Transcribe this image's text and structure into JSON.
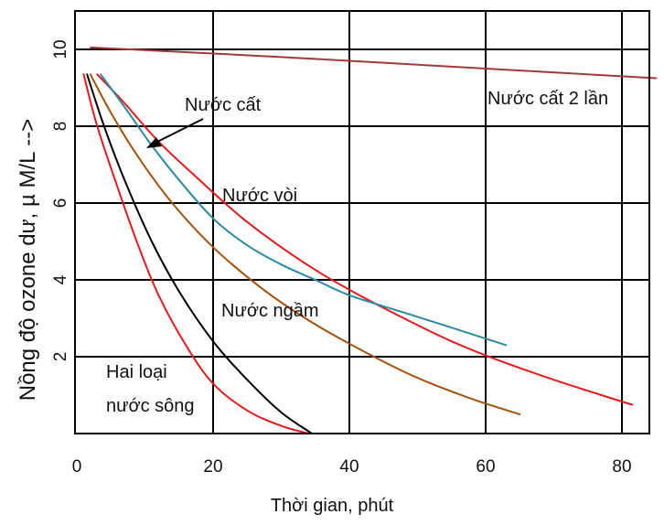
{
  "chart_data": {
    "type": "line",
    "title": "",
    "xlabel": "Thời gian, phút",
    "ylabel": "Nồng độ ozone dư, µ M/L -->",
    "xlim": [
      0,
      85
    ],
    "ylim": [
      0,
      11
    ],
    "grid": true,
    "x_ticks": [
      0,
      20,
      40,
      60,
      80
    ],
    "x_tick_labels": [
      "0",
      "20",
      "40",
      "60",
      "80"
    ],
    "y_ticks": [
      2,
      4,
      6,
      8,
      10
    ],
    "y_tick_labels": [
      "2",
      "4",
      "6",
      "8",
      "10"
    ],
    "series": [
      {
        "name": "Nước cất 2 lần",
        "color": "#a03a3a",
        "points": [
          [
            2,
            10.05
          ],
          [
            30,
            9.8
          ],
          [
            60,
            9.5
          ],
          [
            85,
            9.25
          ]
        ]
      },
      {
        "name": "Nước vòi",
        "color": "#e8191b",
        "points": [
          [
            3,
            9.35
          ],
          [
            7,
            8.6
          ],
          [
            12,
            7.6
          ],
          [
            18,
            6.6
          ],
          [
            24,
            5.65
          ],
          [
            30,
            4.85
          ],
          [
            36,
            4.15
          ],
          [
            42,
            3.55
          ],
          [
            48,
            3.0
          ],
          [
            55,
            2.4
          ],
          [
            62,
            1.9
          ],
          [
            70,
            1.4
          ],
          [
            77,
            1.0
          ],
          [
            81.5,
            0.75
          ]
        ]
      },
      {
        "name": "Nước cất",
        "color": "#2a8ba2",
        "points": [
          [
            3.5,
            9.35
          ],
          [
            7,
            8.5
          ],
          [
            11,
            7.5
          ],
          [
            15,
            6.6
          ],
          [
            20,
            5.6
          ],
          [
            25,
            4.9
          ],
          [
            30,
            4.4
          ],
          [
            35,
            4.0
          ],
          [
            40,
            3.6
          ],
          [
            48,
            3.15
          ],
          [
            56,
            2.7
          ],
          [
            63,
            2.3
          ]
        ]
      },
      {
        "name": "Nước ngầm",
        "color": "#a5520c",
        "points": [
          [
            2,
            9.35
          ],
          [
            5,
            8.35
          ],
          [
            9,
            7.2
          ],
          [
            14,
            6.0
          ],
          [
            20,
            4.85
          ],
          [
            27,
            3.8
          ],
          [
            34,
            2.95
          ],
          [
            42,
            2.15
          ],
          [
            50,
            1.45
          ],
          [
            58,
            0.9
          ],
          [
            65,
            0.5
          ]
        ]
      },
      {
        "name": "Hai loại nước sông - 1",
        "color": "#000000",
        "points": [
          [
            1.5,
            9.35
          ],
          [
            4,
            8.0
          ],
          [
            7,
            6.6
          ],
          [
            11,
            5.0
          ],
          [
            15,
            3.7
          ],
          [
            20,
            2.4
          ],
          [
            25,
            1.4
          ],
          [
            30,
            0.55
          ],
          [
            34.5,
            0.0
          ]
        ]
      },
      {
        "name": "Hai loại nước sông - 2",
        "color": "#e8191b",
        "points": [
          [
            1,
            9.35
          ],
          [
            3,
            8.0
          ],
          [
            6,
            6.4
          ],
          [
            9,
            4.9
          ],
          [
            12,
            3.6
          ],
          [
            16,
            2.3
          ],
          [
            20,
            1.3
          ],
          [
            25,
            0.6
          ],
          [
            30,
            0.2
          ],
          [
            34,
            0.0
          ]
        ]
      }
    ],
    "annotations": [
      {
        "text": "Nước cất 2 lần"
      },
      {
        "text": "Nước cất"
      },
      {
        "text": "Nước vòi"
      },
      {
        "text": "Nước ngầm"
      },
      {
        "text": "Hai loại"
      },
      {
        "text": "nước sông"
      }
    ]
  }
}
